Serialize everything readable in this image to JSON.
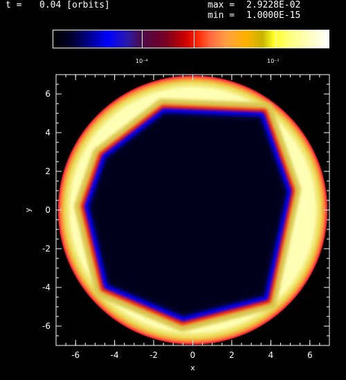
{
  "header": {
    "time_label": "t =",
    "time_value": "0.04 [orbits]",
    "max_label": "max =",
    "max_value": "2.9228E-02",
    "min_label": "min =",
    "min_value": "1.0000E-15"
  },
  "colorbar": {
    "label_1": "10⁻⁴",
    "label_2": "10⁻²"
  },
  "colors": {
    "background": "#000000",
    "ring_bright": "#ffffc8",
    "ring_edge": "#ff2000",
    "ring_inner_blue": "#0000ff",
    "interior": "#00001a"
  },
  "chart_data": {
    "type": "heatmap",
    "title": "",
    "xlabel": "x",
    "ylabel": "y",
    "xlim": [
      -7,
      7
    ],
    "ylim": [
      -7,
      7
    ],
    "xticks": [
      -6,
      -4,
      -2,
      0,
      2,
      4,
      6
    ],
    "yticks": [
      -6,
      -4,
      -2,
      0,
      2,
      4,
      6
    ],
    "colorscale": "log",
    "value_max": 0.029228,
    "value_min": 1e-15,
    "ring_outer_radius": 6.9,
    "ring_inner_vertices": [
      [
        -1.5,
        5.2
      ],
      [
        3.6,
        5.0
      ],
      [
        5.0,
        1.0
      ],
      [
        3.8,
        -4.6
      ],
      [
        -0.5,
        -5.7
      ],
      [
        -4.5,
        -4.0
      ],
      [
        -5.5,
        0.2
      ],
      [
        -4.6,
        2.8
      ]
    ]
  }
}
